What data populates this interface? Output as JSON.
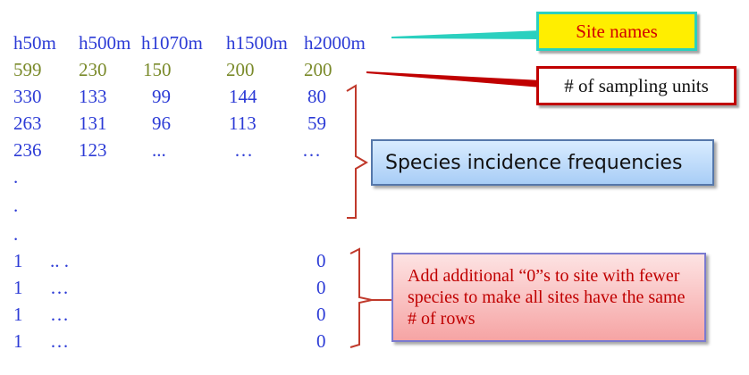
{
  "table": {
    "header": [
      "h50m",
      "h500m",
      "h1070m",
      "h1500m",
      "h2000m"
    ],
    "sampling_units": [
      "599",
      "230",
      "150",
      "200",
      "200"
    ],
    "rows": [
      [
        "330",
        "133",
        "99",
        "144",
        "80"
      ],
      [
        "263",
        "131",
        "96",
        "113",
        "59"
      ],
      [
        "236",
        "123",
        "...",
        "…",
        "…"
      ]
    ],
    "dots": [
      ".",
      ".",
      "."
    ],
    "tail_rows": [
      [
        "1",
        ".. .",
        "0"
      ],
      [
        "1",
        "…",
        "0"
      ],
      [
        "1",
        "…",
        "0"
      ],
      [
        "1",
        "…",
        "0"
      ]
    ]
  },
  "callouts": {
    "site_names": "Site names",
    "sampling_units": "# of sampling units",
    "incidence_freq": "Species incidence frequencies",
    "add_zeros": "Add additional “0”s to site with fewer species to make all sites have the same # of rows"
  },
  "colors": {
    "table_text": "#2c3bd6",
    "sampling_text": "#7a8a2a",
    "site_callout_fill": "#ffee00",
    "site_callout_border": "#2bd0bf",
    "sampling_callout_border": "#c00000",
    "bracket_color": "#c0392b"
  }
}
